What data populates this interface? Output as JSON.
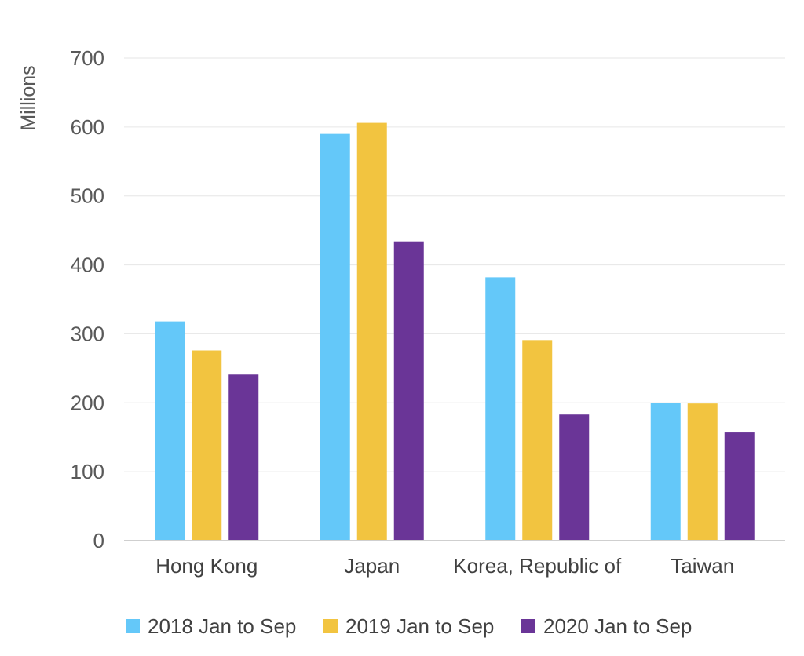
{
  "chart_data": {
    "type": "bar",
    "title": "",
    "xlabel": "",
    "ylabel": "Millions",
    "ylim": [
      0,
      700
    ],
    "yticks": [
      0,
      100,
      200,
      300,
      400,
      500,
      600,
      700
    ],
    "grid": true,
    "legend_position": "bottom",
    "categories": [
      "Hong Kong",
      "Japan",
      "Korea, Republic of",
      "Taiwan"
    ],
    "series": [
      {
        "name": "2018 Jan to Sep",
        "color": "#64c8f9",
        "values": [
          318,
          590,
          382,
          200
        ]
      },
      {
        "name": "2019 Jan to Sep",
        "color": "#f2c440",
        "values": [
          276,
          606,
          291,
          199
        ]
      },
      {
        "name": "2020 Jan to Sep",
        "color": "#6a3597",
        "values": [
          241,
          434,
          183,
          157
        ]
      }
    ]
  }
}
